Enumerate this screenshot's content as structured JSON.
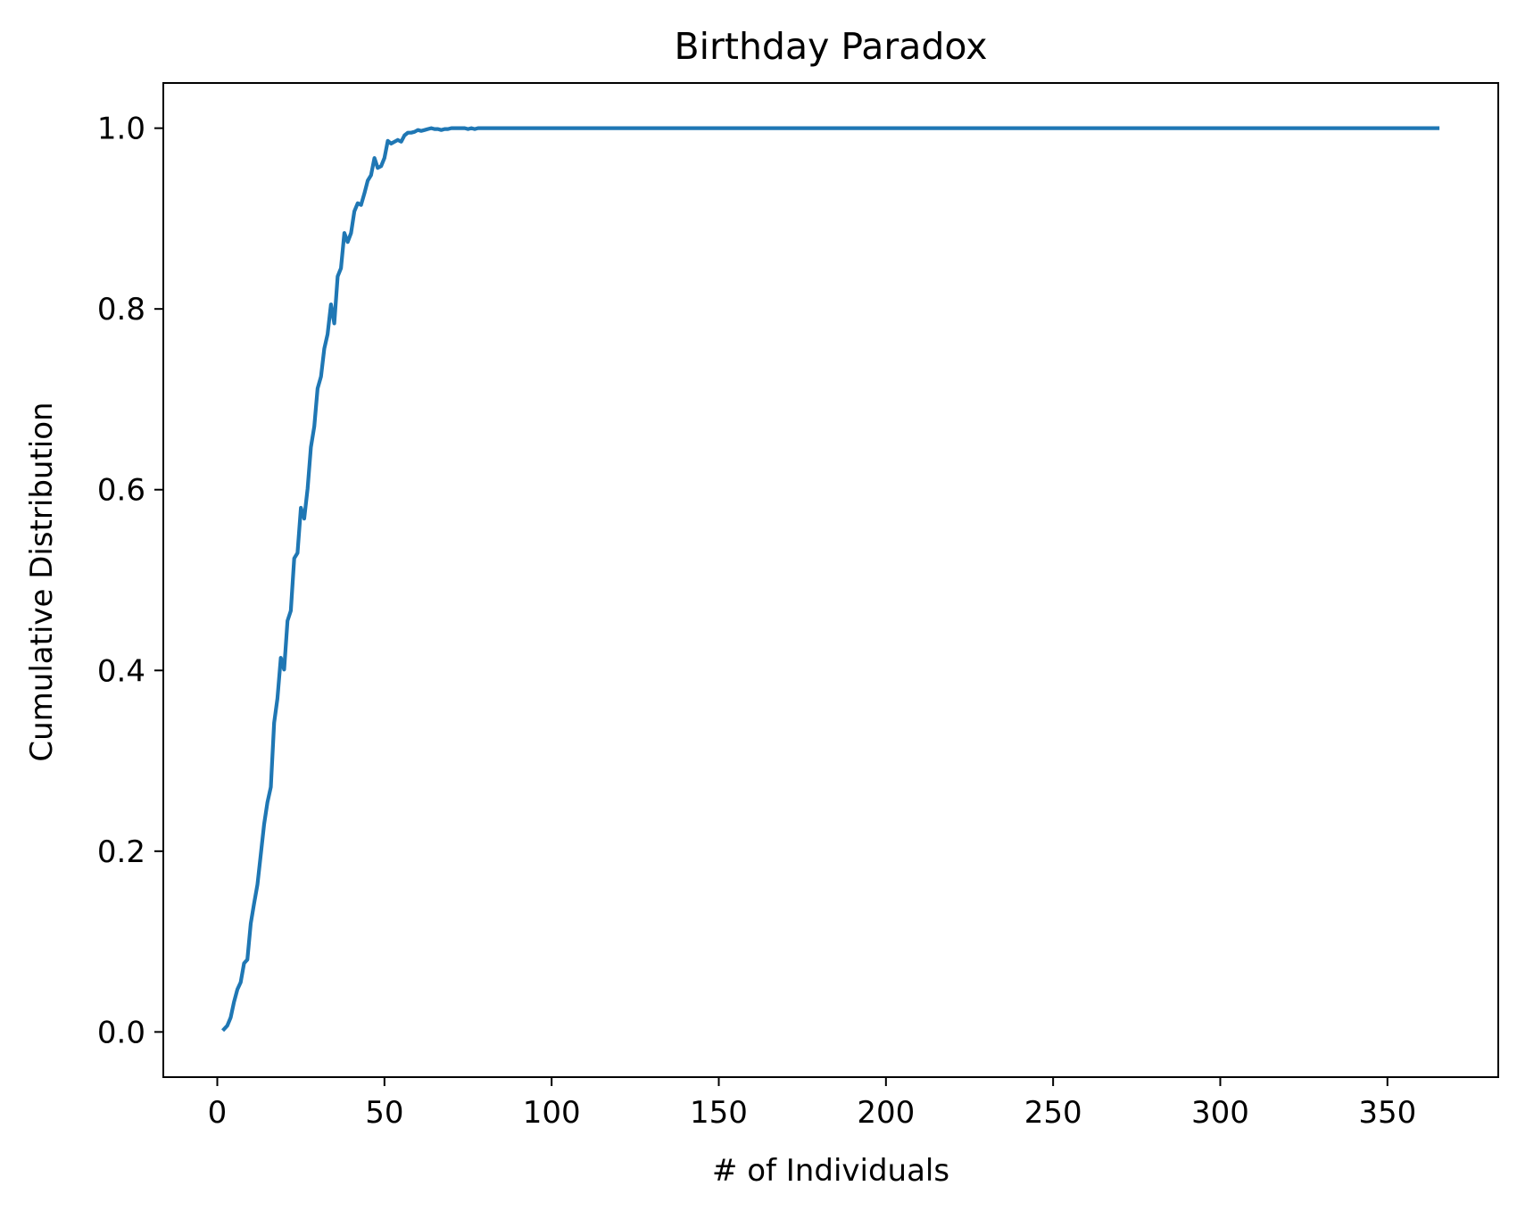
{
  "chart_data": {
    "type": "line",
    "title": "Birthday Paradox",
    "xlabel": "# of Individuals",
    "ylabel": "Cumulative Distribution",
    "xlim": [
      -16.15,
      383.15
    ],
    "ylim": [
      -0.05,
      1.05
    ],
    "xticks": [
      0,
      50,
      100,
      150,
      200,
      250,
      300,
      350
    ],
    "xtick_labels": [
      "0",
      "50",
      "100",
      "150",
      "200",
      "250",
      "300",
      "350"
    ],
    "yticks": [
      0.0,
      0.2,
      0.4,
      0.6,
      0.8,
      1.0
    ],
    "ytick_labels": [
      "0.0",
      "0.2",
      "0.4",
      "0.6",
      "0.8",
      "1.0"
    ],
    "grid": false,
    "legend": false,
    "series": [
      {
        "color": "#1f77b4",
        "x": [
          2,
          3,
          4,
          5,
          6,
          7,
          8,
          9,
          10,
          11,
          12,
          13,
          14,
          15,
          16,
          17,
          18,
          19,
          20,
          21,
          22,
          23,
          24,
          25,
          26,
          27,
          28,
          29,
          30,
          31,
          32,
          33,
          34,
          35,
          36,
          37,
          38,
          39,
          40,
          41,
          42,
          43,
          44,
          45,
          46,
          47,
          48,
          49,
          50,
          51,
          52,
          53,
          54,
          55,
          56,
          57,
          58,
          59,
          60,
          61,
          62,
          63,
          64,
          65,
          66,
          67,
          68,
          69,
          70,
          71,
          72,
          73,
          74,
          75,
          76,
          77,
          78,
          79,
          80,
          90,
          100,
          150,
          200,
          250,
          300,
          365
        ],
        "y": [
          0.003,
          0.007,
          0.016,
          0.033,
          0.047,
          0.055,
          0.076,
          0.08,
          0.12,
          0.142,
          0.163,
          0.196,
          0.23,
          0.254,
          0.271,
          0.342,
          0.369,
          0.414,
          0.401,
          0.455,
          0.466,
          0.524,
          0.53,
          0.58,
          0.568,
          0.601,
          0.647,
          0.67,
          0.712,
          0.725,
          0.756,
          0.772,
          0.805,
          0.784,
          0.836,
          0.845,
          0.884,
          0.874,
          0.884,
          0.908,
          0.917,
          0.915,
          0.928,
          0.942,
          0.948,
          0.967,
          0.956,
          0.958,
          0.967,
          0.986,
          0.983,
          0.985,
          0.987,
          0.985,
          0.992,
          0.995,
          0.995,
          0.996,
          0.998,
          0.997,
          0.998,
          0.999,
          1.0,
          0.999,
          0.999,
          0.998,
          0.999,
          0.999,
          1.0,
          1.0,
          1.0,
          1.0,
          1.0,
          0.999,
          1.0,
          0.999,
          1.0,
          1.0,
          1.0,
          1.0,
          1.0,
          1.0,
          1.0,
          1.0,
          1.0,
          1.0
        ]
      }
    ]
  }
}
